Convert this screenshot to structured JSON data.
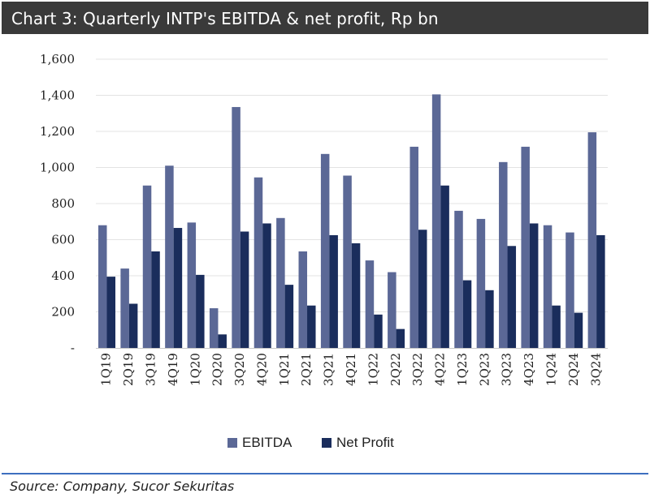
{
  "title": "Chart 3: Quarterly INTP's EBITDA & net profit, Rp bn",
  "source": "Source: Company, Sucor Sekuritas",
  "colors": {
    "ebitda": "#5b6896",
    "net_profit": "#1a2d5c",
    "title_bg": "#3a3a3a",
    "divider": "#3d6fbf"
  },
  "chart_data": {
    "type": "bar",
    "title": "Chart 3: Quarterly INTP's EBITDA & net profit, Rp bn",
    "xlabel": "",
    "ylabel": "",
    "ylim": [
      0,
      1600
    ],
    "yticks": [
      0,
      200,
      400,
      600,
      800,
      1000,
      1200,
      1400,
      1600
    ],
    "ytick_labels": [
      "-",
      "200",
      "400",
      "600",
      "800",
      "1,000",
      "1,200",
      "1,400",
      "1,600"
    ],
    "grid": true,
    "legend_position": "bottom",
    "categories": [
      "1Q19",
      "2Q19",
      "3Q19",
      "4Q19",
      "1Q20",
      "2Q20",
      "3Q20",
      "4Q20",
      "1Q21",
      "2Q21",
      "3Q21",
      "4Q21",
      "1Q22",
      "2Q22",
      "3Q22",
      "4Q22",
      "1Q23",
      "2Q23",
      "3Q23",
      "4Q23",
      "1Q24",
      "2Q24",
      "3Q24"
    ],
    "series": [
      {
        "name": "EBITDA",
        "values": [
          680,
          440,
          900,
          1010,
          695,
          220,
          1335,
          945,
          720,
          535,
          1075,
          955,
          485,
          420,
          1115,
          1405,
          760,
          715,
          1030,
          1115,
          680,
          640,
          1195
        ]
      },
      {
        "name": "Net Profit",
        "values": [
          395,
          245,
          535,
          665,
          405,
          75,
          645,
          690,
          350,
          235,
          625,
          580,
          185,
          105,
          655,
          900,
          375,
          320,
          565,
          690,
          235,
          195,
          625
        ]
      }
    ]
  }
}
